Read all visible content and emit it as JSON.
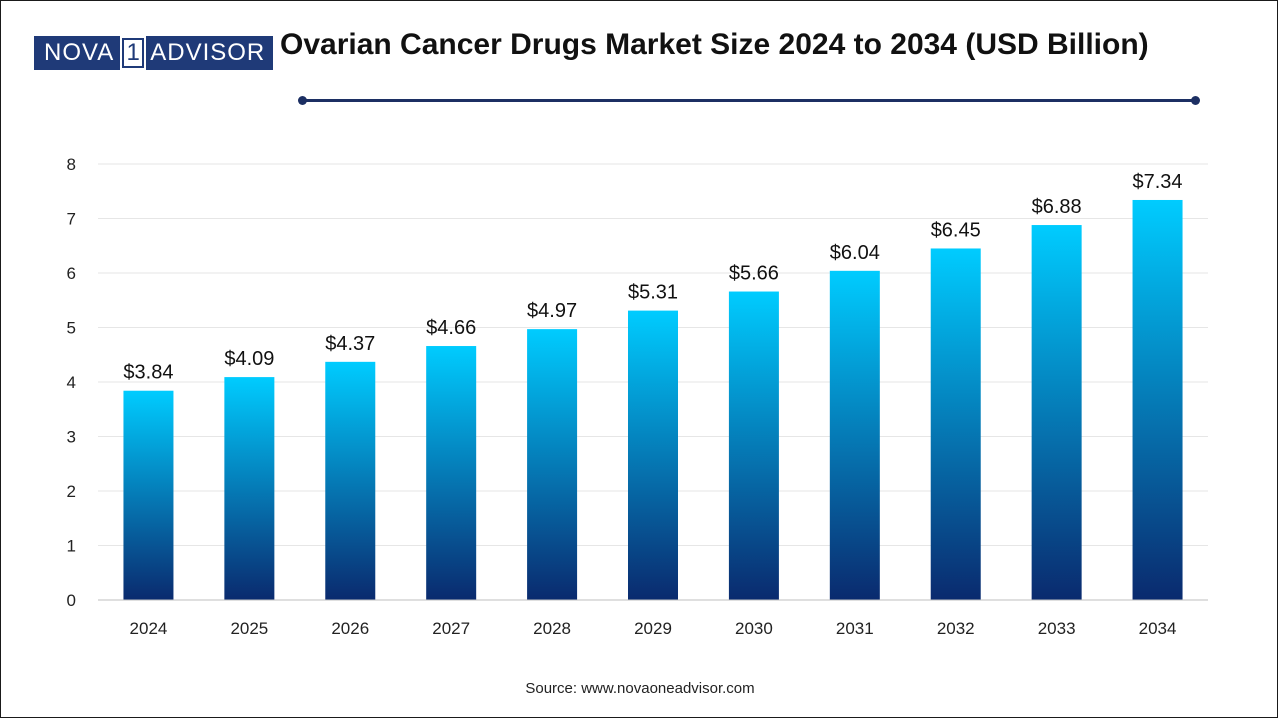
{
  "logo": {
    "part1": "NOVA",
    "part2": "1",
    "part3": "ADVISOR"
  },
  "title": "Ovarian Cancer Drugs Market Size 2024 to 2034 (USD Billion)",
  "source": "Source: www.novaoneadvisor.com",
  "colors": {
    "bar_top": "#00ccff",
    "bar_bottom": "#0a2a6e",
    "rule": "#1c2f63",
    "logo_bg": "#1f3a78"
  },
  "chart_data": {
    "type": "bar",
    "title": "Ovarian Cancer Drugs Market Size 2024 to 2034 (USD Billion)",
    "categories": [
      "2024",
      "2025",
      "2026",
      "2027",
      "2028",
      "2029",
      "2030",
      "2031",
      "2032",
      "2033",
      "2034"
    ],
    "values": [
      3.84,
      4.09,
      4.37,
      4.66,
      4.97,
      5.31,
      5.66,
      6.04,
      6.45,
      6.88,
      7.34
    ],
    "labels": [
      "$3.84",
      "$4.09",
      "$4.37",
      "$4.66",
      "$4.97",
      "$5.31",
      "$5.66",
      "$6.04",
      "$6.45",
      "$6.88",
      "$7.34"
    ],
    "ylim": [
      0,
      8
    ],
    "yticks": [
      "0",
      "1",
      "2",
      "3",
      "4",
      "5",
      "6",
      "7",
      "8"
    ],
    "xlabel": "",
    "ylabel": "",
    "grid": true
  }
}
